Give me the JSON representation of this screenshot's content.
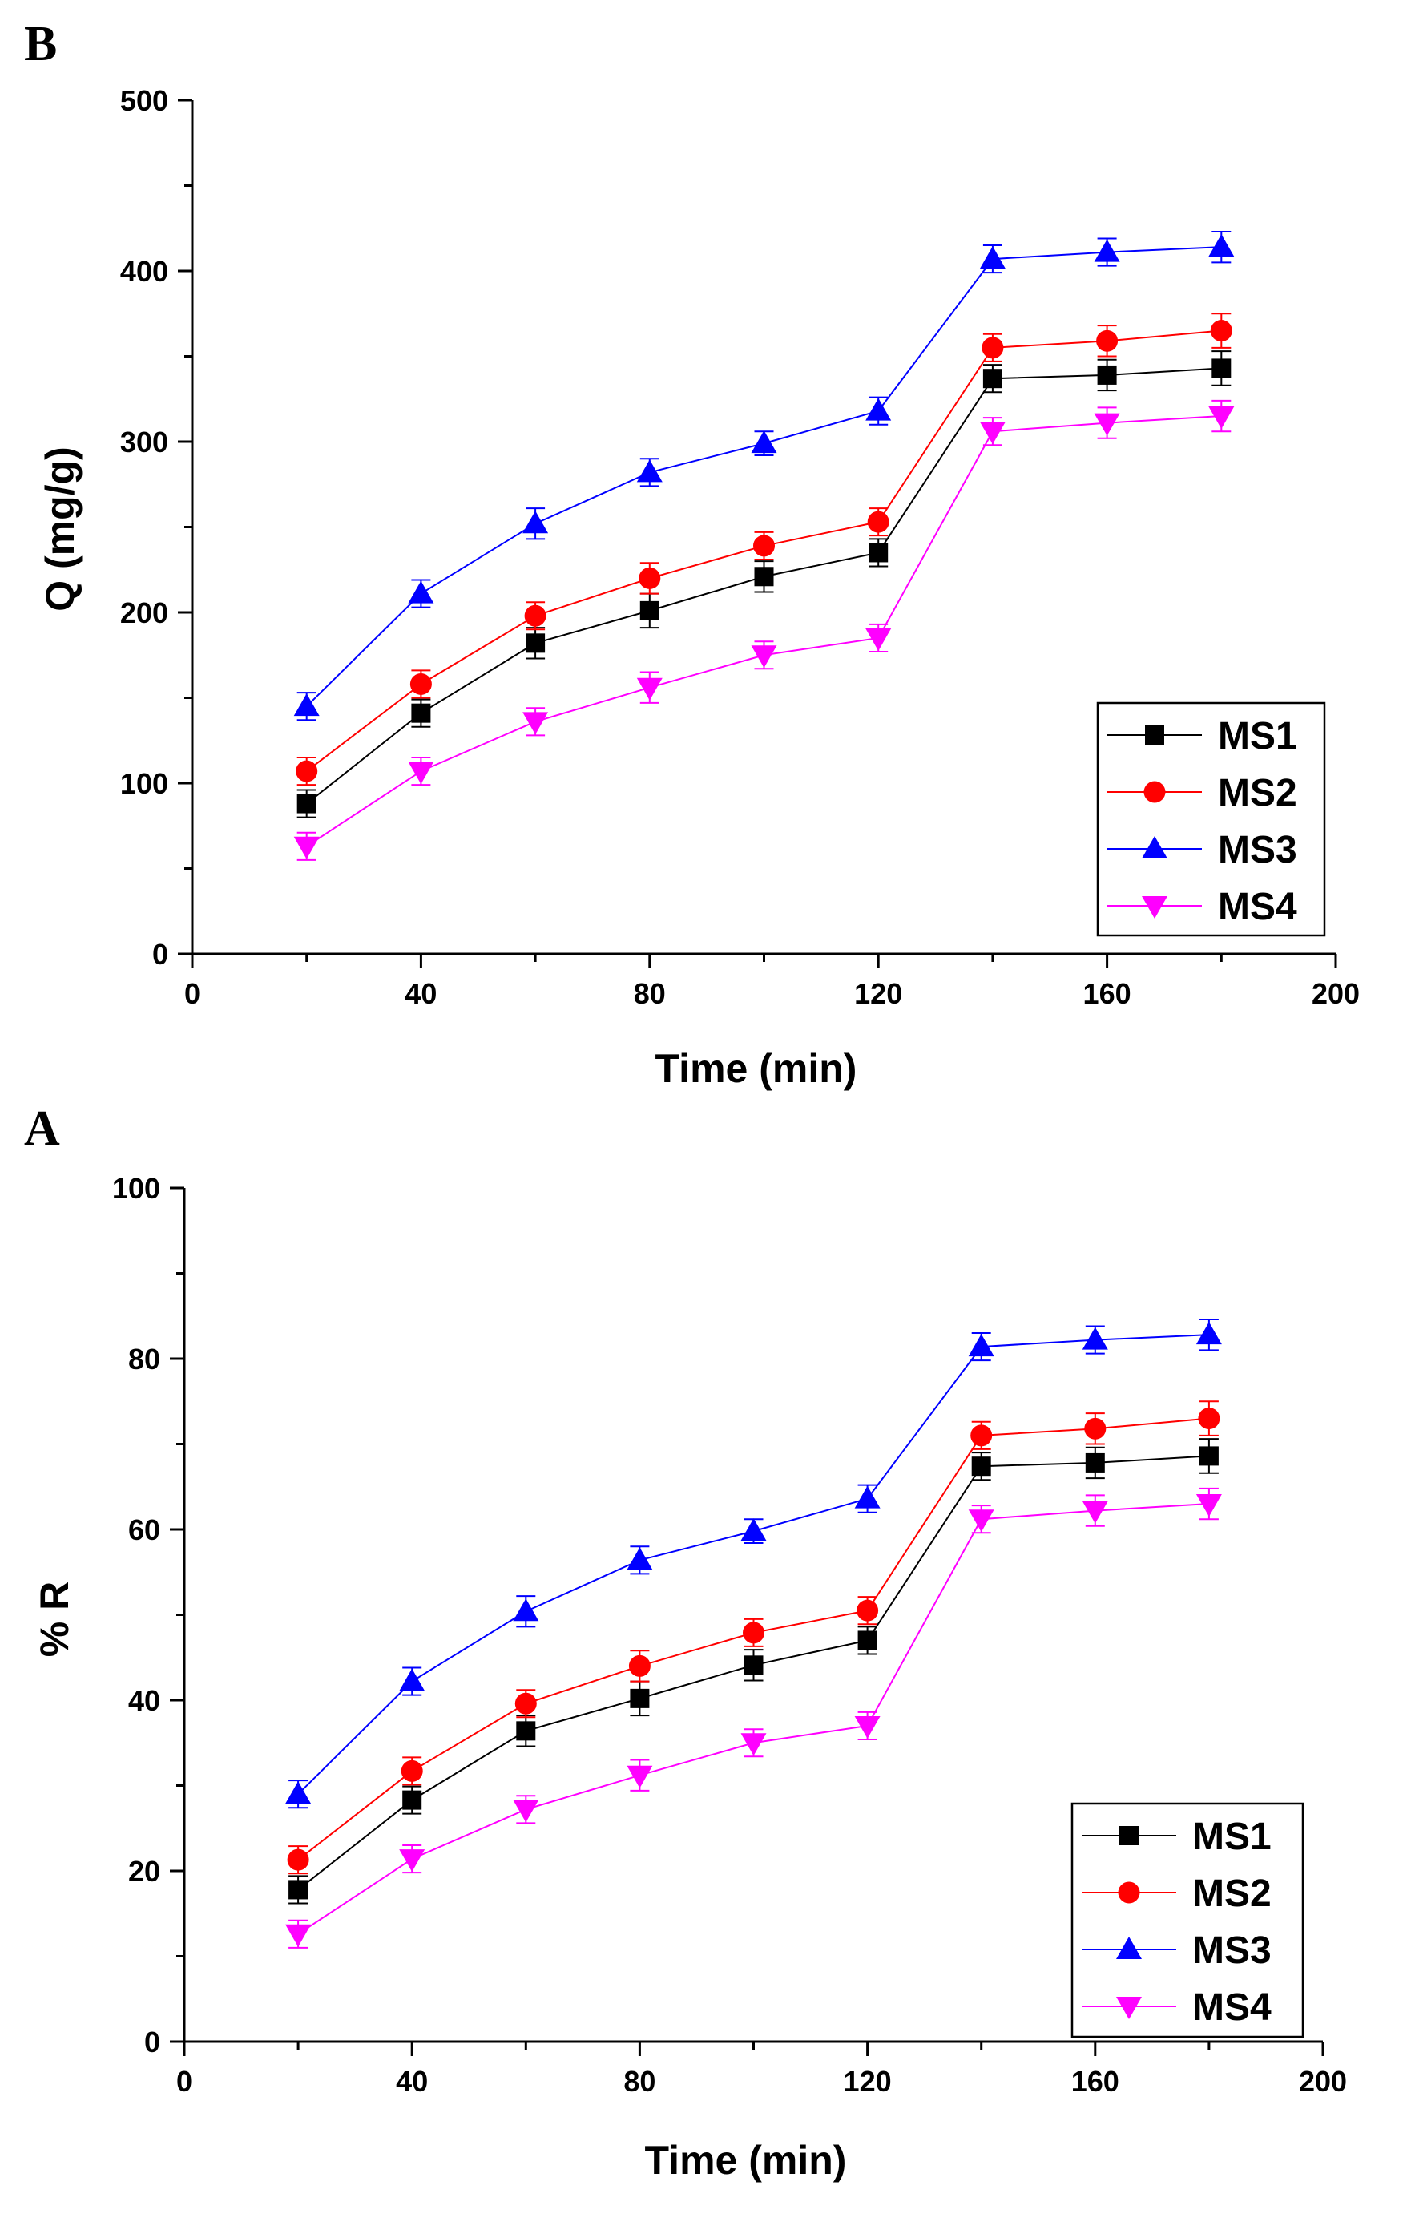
{
  "chart_data": [
    {
      "panel": "B",
      "type": "line",
      "xlabel": "Time (min)",
      "ylabel": "Q (mg/g)",
      "xlim": [
        0,
        200
      ],
      "ylim": [
        0,
        500
      ],
      "xticks": [
        0,
        40,
        80,
        120,
        160,
        200
      ],
      "yticks": [
        0,
        100,
        200,
        300,
        400,
        500
      ],
      "x": [
        20,
        40,
        60,
        80,
        100,
        120,
        140,
        160,
        180
      ],
      "legend_position": "bottom-right",
      "series": [
        {
          "name": "MS1",
          "color": "#000000",
          "marker": "square",
          "values": [
            88,
            141,
            182,
            201,
            221,
            235,
            337,
            339,
            343
          ],
          "errors": [
            8,
            8,
            9,
            10,
            9,
            8,
            8,
            9,
            10
          ]
        },
        {
          "name": "MS2",
          "color": "#ff0000",
          "marker": "circle",
          "values": [
            107,
            158,
            198,
            220,
            239,
            253,
            355,
            359,
            365
          ],
          "errors": [
            8,
            8,
            8,
            9,
            8,
            8,
            8,
            9,
            10
          ]
        },
        {
          "name": "MS3",
          "color": "#0000ff",
          "marker": "triangle-up",
          "values": [
            145,
            211,
            252,
            282,
            299,
            318,
            407,
            411,
            414
          ],
          "errors": [
            8,
            8,
            9,
            8,
            7,
            8,
            8,
            8,
            9
          ]
        },
        {
          "name": "MS4",
          "color": "#ff00ff",
          "marker": "triangle-down",
          "values": [
            63,
            107,
            136,
            156,
            175,
            185,
            306,
            311,
            315
          ],
          "errors": [
            8,
            8,
            8,
            9,
            8,
            8,
            8,
            9,
            9
          ]
        }
      ]
    },
    {
      "panel": "A",
      "type": "line",
      "xlabel": "Time (min)",
      "ylabel": "% R",
      "xlim": [
        0,
        200
      ],
      "ylim": [
        0,
        100
      ],
      "xticks": [
        0,
        40,
        80,
        120,
        160,
        200
      ],
      "yticks": [
        0,
        20,
        40,
        60,
        80,
        100
      ],
      "x": [
        20,
        40,
        60,
        80,
        100,
        120,
        140,
        160,
        180
      ],
      "legend_position": "bottom-right",
      "series": [
        {
          "name": "MS1",
          "color": "#000000",
          "marker": "square",
          "values": [
            17.8,
            28.3,
            36.4,
            40.2,
            44.1,
            47.0,
            67.4,
            67.8,
            68.6
          ],
          "errors": [
            1.6,
            1.6,
            1.8,
            2.0,
            1.8,
            1.6,
            1.6,
            1.8,
            2.0
          ]
        },
        {
          "name": "MS2",
          "color": "#ff0000",
          "marker": "circle",
          "values": [
            21.3,
            31.7,
            39.6,
            44.0,
            47.9,
            50.5,
            71.0,
            71.8,
            73.0
          ],
          "errors": [
            1.6,
            1.6,
            1.6,
            1.8,
            1.6,
            1.6,
            1.6,
            1.8,
            2.0
          ]
        },
        {
          "name": "MS3",
          "color": "#0000ff",
          "marker": "triangle-up",
          "values": [
            29.0,
            42.2,
            50.4,
            56.4,
            59.8,
            63.6,
            81.4,
            82.2,
            82.8
          ],
          "errors": [
            1.6,
            1.6,
            1.8,
            1.6,
            1.4,
            1.6,
            1.6,
            1.6,
            1.8
          ]
        },
        {
          "name": "MS4",
          "color": "#ff00ff",
          "marker": "triangle-down",
          "values": [
            12.6,
            21.4,
            27.2,
            31.2,
            35.0,
            37.0,
            61.2,
            62.2,
            63.0
          ],
          "errors": [
            1.6,
            1.6,
            1.6,
            1.8,
            1.6,
            1.6,
            1.6,
            1.8,
            1.8
          ]
        }
      ]
    }
  ]
}
